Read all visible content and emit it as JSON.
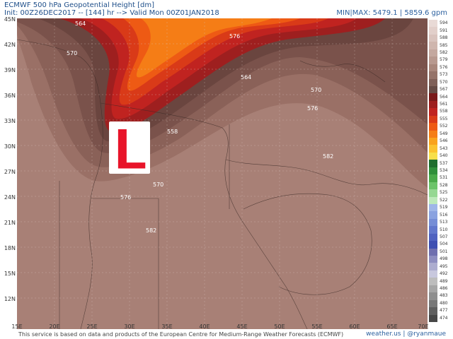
{
  "header": {
    "title": "ECMWF 500 hPa Geopotential Height [dm]",
    "init_line": "Init: 00Z26DEC2017 -- [144] hr --> Valid Mon 00Z01JAN2018",
    "minmax": "MIN|MAX: 5479.1 | 5859.6 gpm"
  },
  "map": {
    "lat_labels": [
      "45N",
      "42N",
      "39N",
      "36N",
      "33N",
      "30N",
      "27N",
      "24N",
      "21N",
      "18N",
      "15N",
      "12N"
    ],
    "lon_labels": [
      "15E",
      "20E",
      "25E",
      "30E",
      "35E",
      "40E",
      "45E",
      "50E",
      "55E",
      "60E",
      "65E",
      "70E"
    ],
    "contour_labels": [
      "564",
      "570",
      "564",
      "570",
      "576",
      "558",
      "582",
      "570",
      "576",
      "582",
      "576"
    ],
    "low_symbol": "L",
    "low_color": "#e8142a"
  },
  "colorbar": {
    "labels": [
      "594",
      "591",
      "588",
      "585",
      "582",
      "579",
      "576",
      "573",
      "570",
      "567",
      "564",
      "561",
      "558",
      "555",
      "552",
      "549",
      "546",
      "543",
      "540",
      "537",
      "534",
      "531",
      "528",
      "525",
      "522",
      "519",
      "516",
      "513",
      "510",
      "507",
      "504",
      "501",
      "498",
      "495",
      "492",
      "489",
      "486",
      "483",
      "480",
      "477",
      "474"
    ],
    "colors": [
      "#e9dad6",
      "#e2cfca",
      "#d9c3bd",
      "#cfb6ae",
      "#c4a89f",
      "#b8998f",
      "#a9877c",
      "#96746a",
      "#7f6058",
      "#664b45",
      "#7a1a1a",
      "#9e1f1f",
      "#c02320",
      "#d93a18",
      "#ee5a14",
      "#f57d16",
      "#f9a21c",
      "#fbc22e",
      "#f7df4a",
      "#1f6e2e",
      "#2f8f3a",
      "#4aaa4a",
      "#6cc46a",
      "#95d893",
      "#bde9bb",
      "#9fb6e8",
      "#8aa2e0",
      "#758dd6",
      "#6177cc",
      "#4f62c0",
      "#3e4fb2",
      "#6f6faf",
      "#8e8ec0",
      "#adadcf",
      "#c8c8de",
      "#bdbdbd",
      "#a6a6a6",
      "#8f8f8f",
      "#787878",
      "#5f5f5f",
      "#474747"
    ]
  },
  "footer": {
    "credit": "This service is based on data and products of the European Centre for Medium-Range Weather Forecasts (ECMWF)",
    "site": "weather.us | @ryanmaue"
  }
}
